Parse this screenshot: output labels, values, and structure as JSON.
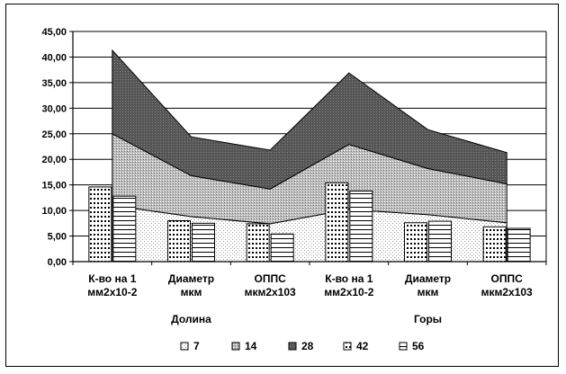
{
  "chart_data": {
    "type": "bar",
    "combo": "stacked-area + clustered-bar",
    "categories": [
      [
        "К-во на 1",
        "мм2х10-2"
      ],
      [
        "Диаметр",
        "мкм"
      ],
      [
        "ОППС",
        "мкм2х103"
      ],
      [
        "К-во на 1",
        "мм2х10-2"
      ],
      [
        "Диаметр",
        "мкм"
      ],
      [
        "ОППС",
        "мкм2х103"
      ]
    ],
    "groups": [
      "Долина",
      "Горы"
    ],
    "ylim": [
      0,
      45
    ],
    "yticks": [
      "0,00",
      "5,00",
      "10,00",
      "15,00",
      "20,00",
      "25,00",
      "30,00",
      "35,00",
      "40,00",
      "45,00"
    ],
    "grid": true,
    "legend_position": "bottom",
    "area_series": [
      {
        "name": "7",
        "values": [
          11.0,
          8.8,
          7.4,
          10.2,
          9.2,
          7.6
        ]
      },
      {
        "name": "14",
        "values": [
          14.0,
          8.0,
          6.8,
          12.7,
          9.0,
          7.6
        ]
      },
      {
        "name": "28",
        "values": [
          16.3,
          7.6,
          7.6,
          14.0,
          7.6,
          6.1
        ]
      }
    ],
    "bar_series": [
      {
        "name": "42",
        "values": [
          14.6,
          8.0,
          7.4,
          15.4,
          7.6,
          6.8
        ]
      },
      {
        "name": "56",
        "values": [
          12.8,
          7.5,
          5.4,
          13.8,
          7.9,
          6.5
        ]
      }
    ],
    "legend": [
      "7",
      "14",
      "28",
      "42",
      "56"
    ]
  }
}
